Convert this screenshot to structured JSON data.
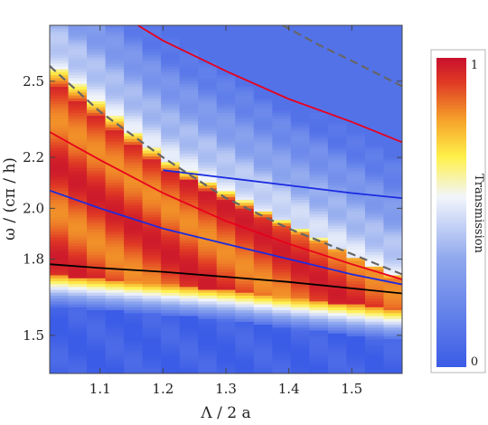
{
  "chart_data": {
    "type": "heatmap",
    "xlabel": "Λ / 2 a",
    "ylabel": "ω / (cπ / h)",
    "xlim": [
      1.02,
      1.58
    ],
    "ylim": [
      1.35,
      2.72
    ],
    "x_ticks": [
      "1.1",
      "1.2",
      "1.3",
      "1.4",
      "1.5"
    ],
    "x_tick_values": [
      1.1,
      1.2,
      1.3,
      1.4,
      1.5
    ],
    "y_ticks": [
      "1.5",
      "1.8",
      "2.0",
      "2.2",
      "2.5"
    ],
    "y_tick_values": [
      1.5,
      1.8,
      2.0,
      2.2,
      2.5
    ],
    "colorbar": {
      "label": "Transmission",
      "min_label": "0",
      "max_label": "1",
      "range": [
        0,
        1
      ],
      "colors": [
        "#3b5ce6",
        "#8fa8ee",
        "#f2f5fb",
        "#fff14a",
        "#f5a12a",
        "#e03a24",
        "#c8102e"
      ]
    },
    "heatmap_columns": 19,
    "heatmap_description_regions": {
      "high_transmission_band_bottom": [
        [
          1.02,
          1.74
        ],
        [
          1.3,
          1.68
        ],
        [
          1.58,
          1.6
        ]
      ],
      "high_transmission_band_top": [
        [
          1.02,
          2.58
        ],
        [
          1.2,
          2.2
        ],
        [
          1.4,
          1.94
        ],
        [
          1.58,
          1.72
        ]
      ]
    },
    "series": [
      {
        "color": "#e8001c",
        "x": [
          1.02,
          1.1,
          1.2,
          1.3,
          1.4,
          1.5,
          1.58
        ],
        "y": [
          2.3,
          2.19,
          2.06,
          1.95,
          1.86,
          1.78,
          1.72
        ]
      },
      {
        "color": "#e8001c",
        "x": [
          1.16,
          1.2,
          1.3,
          1.4,
          1.5,
          1.58
        ],
        "y": [
          2.72,
          2.66,
          2.54,
          2.43,
          2.34,
          2.26
        ]
      },
      {
        "color": "#1b2be0",
        "x": [
          1.02,
          1.1,
          1.2,
          1.3,
          1.4,
          1.5,
          1.58
        ],
        "y": [
          2.07,
          2.0,
          1.92,
          1.86,
          1.8,
          1.74,
          1.7
        ]
      },
      {
        "color": "#1b2be0",
        "x": [
          1.2,
          1.3,
          1.4,
          1.5,
          1.58
        ],
        "y": [
          2.15,
          2.12,
          2.09,
          2.06,
          2.04
        ]
      },
      {
        "color": "#000000",
        "x": [
          1.02,
          1.1,
          1.2,
          1.3,
          1.4,
          1.5,
          1.58
        ],
        "y": [
          1.78,
          1.765,
          1.75,
          1.73,
          1.71,
          1.685,
          1.665
        ]
      },
      {
        "color": "#666666",
        "dashed": true,
        "x": [
          1.02,
          1.1,
          1.2,
          1.3,
          1.4,
          1.5,
          1.58
        ],
        "y": [
          2.56,
          2.38,
          2.2,
          2.04,
          1.92,
          1.82,
          1.74
        ]
      },
      {
        "color": "#666666",
        "dashed": true,
        "x": [
          1.39,
          1.45,
          1.5,
          1.58
        ],
        "y": [
          2.72,
          2.64,
          2.58,
          2.48
        ]
      }
    ]
  }
}
